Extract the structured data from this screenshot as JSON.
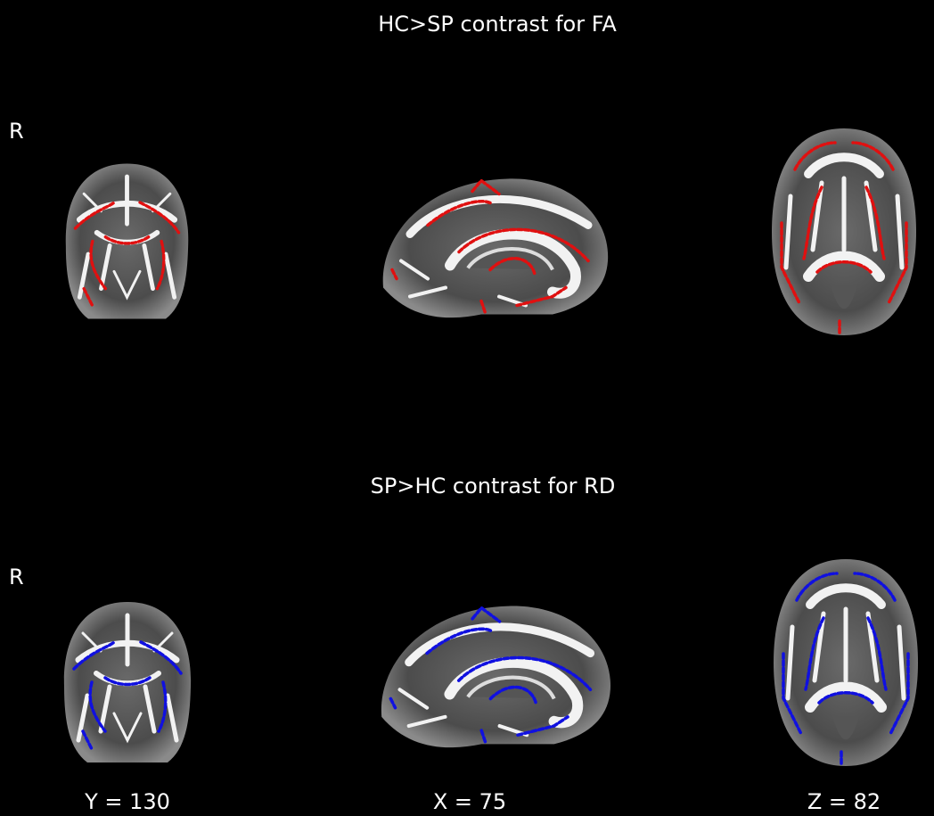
{
  "panels": [
    {
      "title": "HC>SP contrast for FA",
      "side": "R"
    },
    {
      "title": "SP>HC contrast for RD",
      "side": "R"
    }
  ],
  "slice_labels": [
    "Y = 130",
    "X = 75",
    "Z = 82"
  ]
}
